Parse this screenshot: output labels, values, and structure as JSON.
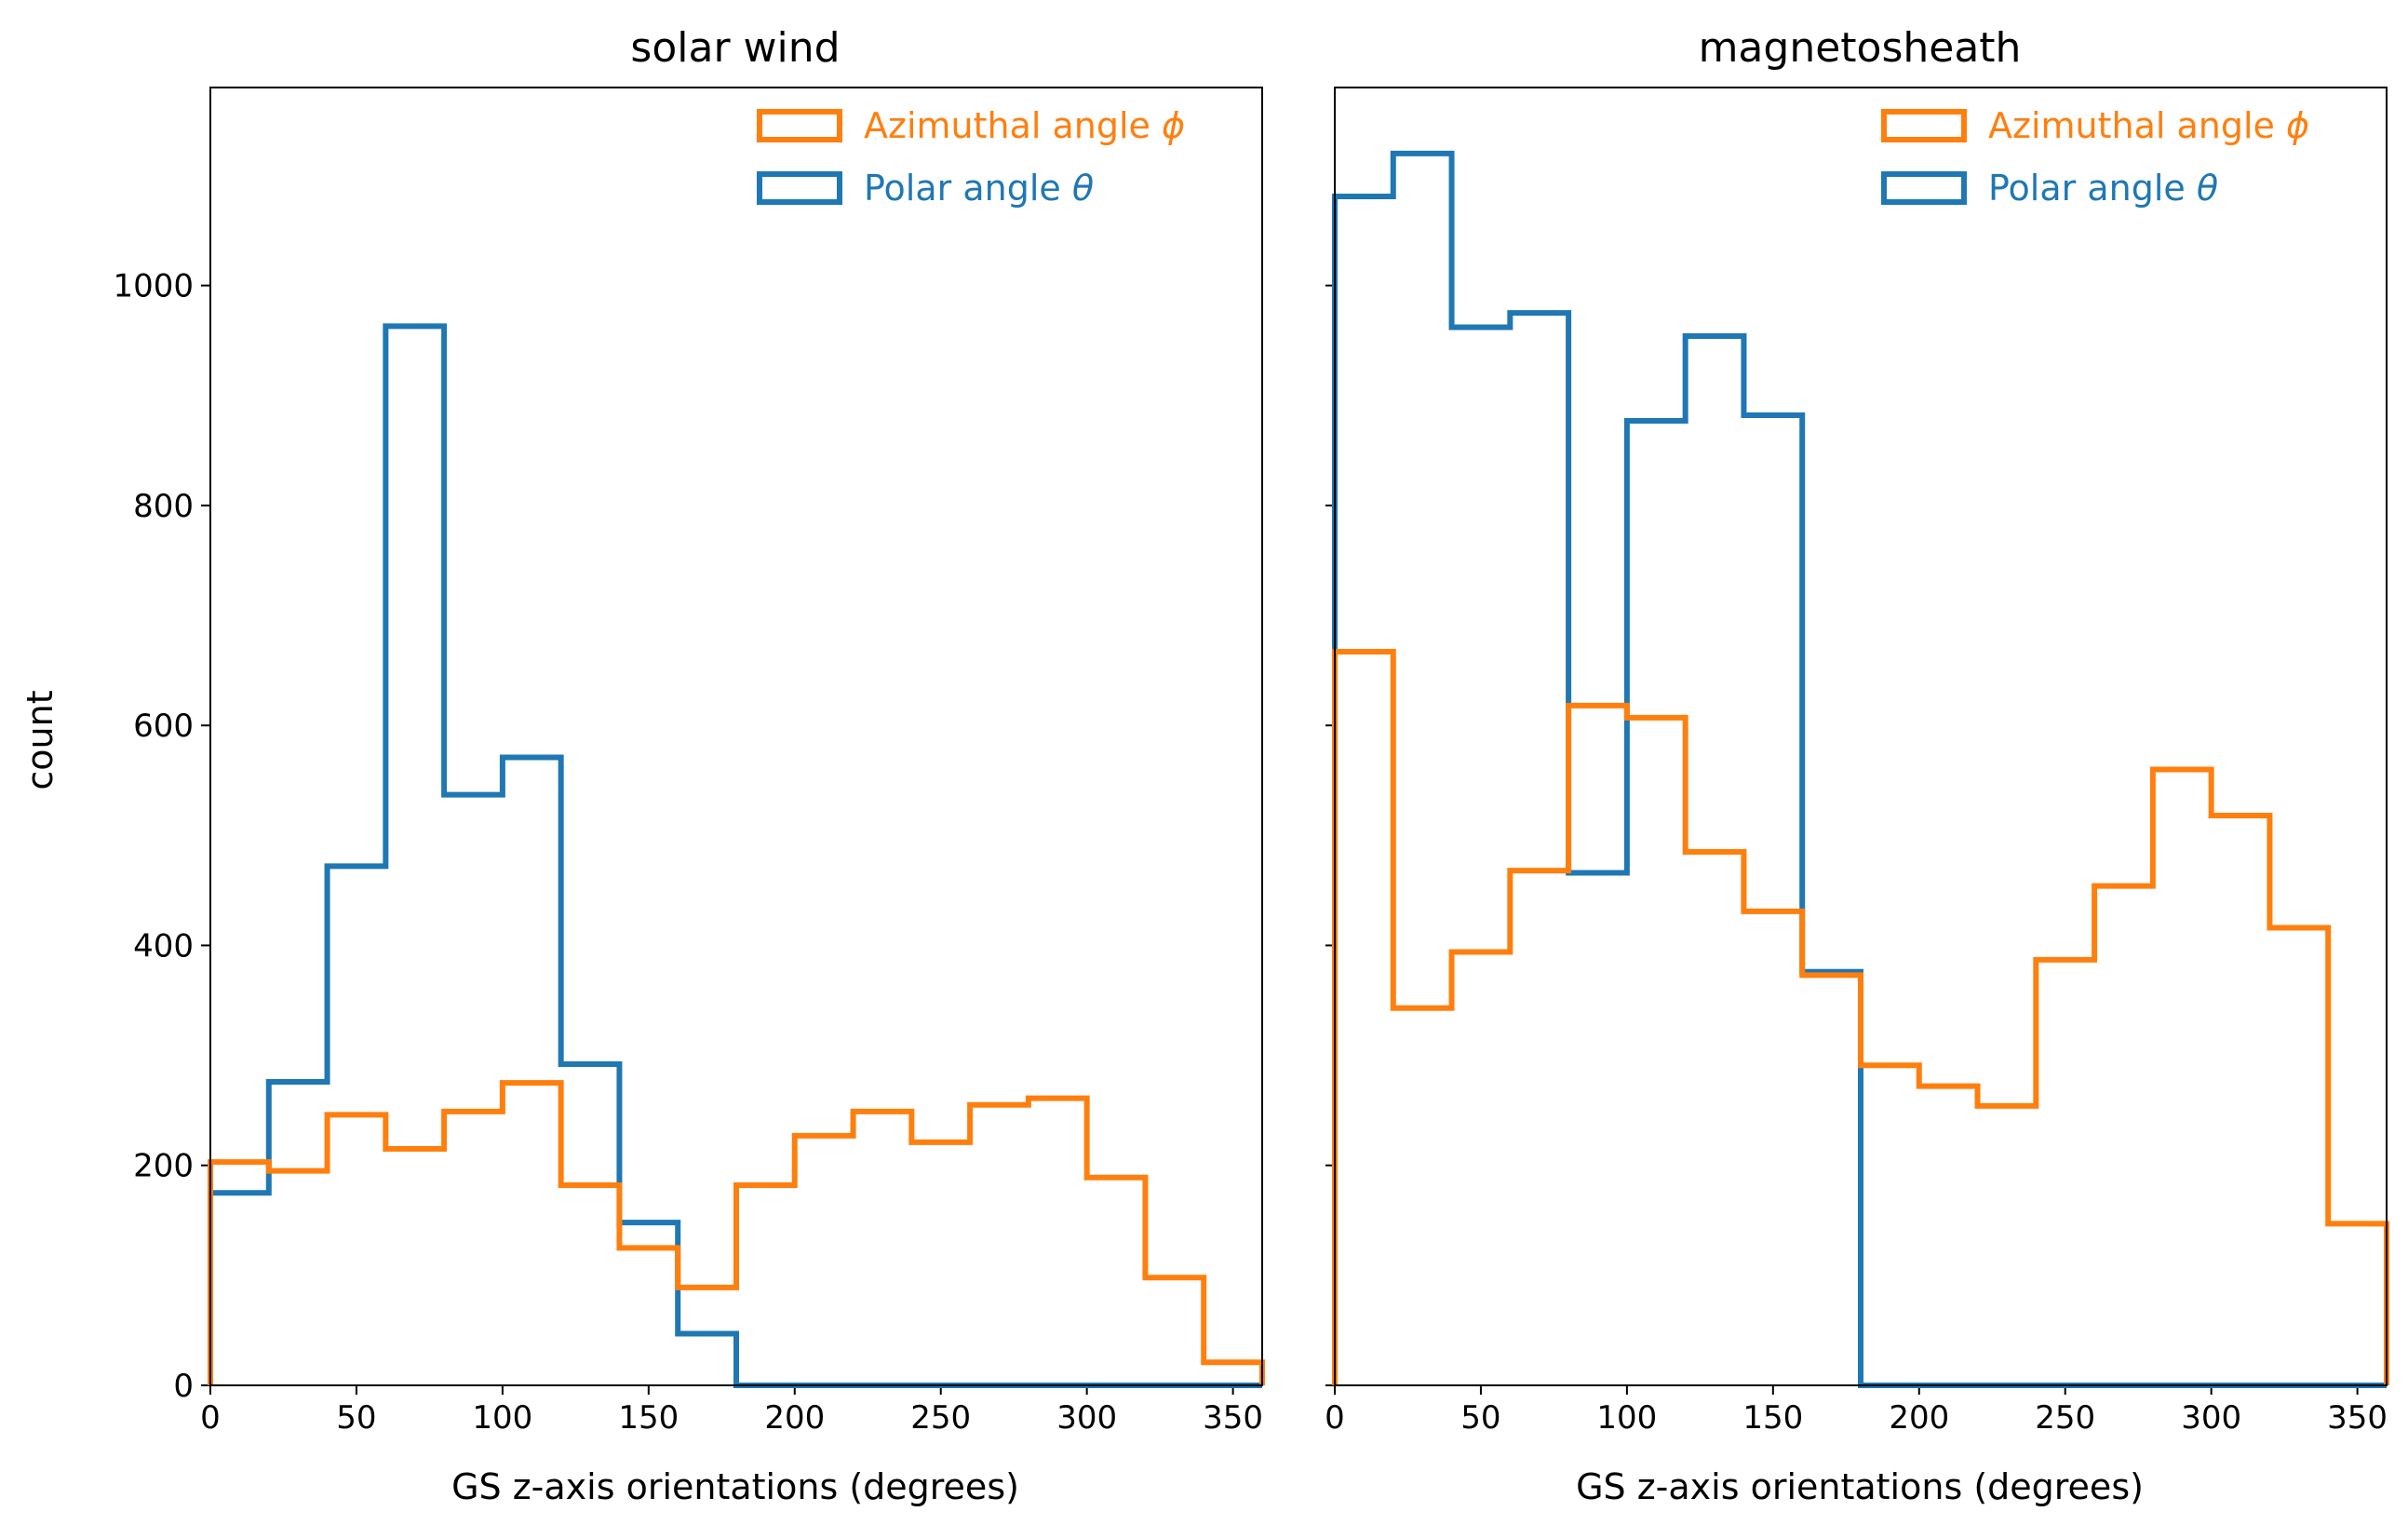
{
  "figure": {
    "ylabel": "count"
  },
  "colors": {
    "azimuthal": "#ff7f0e",
    "polar": "#1f77b4"
  },
  "chart_data": [
    {
      "type": "histogram-step",
      "title": "solar wind",
      "xlabel": "GS z-axis orientations (degrees)",
      "ylabel": "count",
      "xlim": [
        0,
        360
      ],
      "ylim": [
        0,
        1180
      ],
      "xticks": [
        0,
        50,
        100,
        150,
        200,
        250,
        300,
        350
      ],
      "yticks": [
        0,
        200,
        400,
        600,
        800,
        1000
      ],
      "bin_edges": [
        0,
        20,
        40,
        60,
        80,
        100,
        120,
        140,
        160,
        180,
        200,
        220,
        240,
        260,
        280,
        300,
        320,
        340,
        360
      ],
      "legend_position": "top-right",
      "series": [
        {
          "name": "Azimuthal angle",
          "symbol": "ϕ",
          "color": "#ff7f0e",
          "values": [
            203,
            195,
            246,
            215,
            249,
            275,
            182,
            125,
            89,
            182,
            227,
            249,
            221,
            255,
            261,
            189,
            98,
            21
          ]
        },
        {
          "name": "Polar angle",
          "symbol": "θ",
          "color": "#1f77b4",
          "values": [
            175,
            276,
            472,
            963,
            537,
            571,
            292,
            148,
            47,
            0,
            0,
            0,
            0,
            0,
            0,
            0,
            0,
            0
          ]
        }
      ]
    },
    {
      "type": "histogram-step",
      "title": "magnetosheath",
      "xlabel": "GS z-axis orientations (degrees)",
      "ylabel": "",
      "xlim": [
        0,
        360
      ],
      "ylim": [
        0,
        1180
      ],
      "xticks": [
        0,
        50,
        100,
        150,
        200,
        250,
        300,
        350
      ],
      "yticks": [
        0,
        200,
        400,
        600,
        800,
        1000
      ],
      "bin_edges": [
        0,
        20,
        40,
        60,
        80,
        100,
        120,
        140,
        160,
        180,
        200,
        220,
        240,
        260,
        280,
        300,
        320,
        340,
        360
      ],
      "legend_position": "top-right",
      "series": [
        {
          "name": "Azimuthal angle",
          "symbol": "ϕ",
          "color": "#ff7f0e",
          "values": [
            667,
            343,
            394,
            468,
            618,
            607,
            485,
            431,
            373,
            291,
            272,
            254,
            387,
            454,
            560,
            518,
            416,
            147
          ]
        },
        {
          "name": "Polar angle",
          "symbol": "θ",
          "color": "#1f77b4",
          "values": [
            1081,
            1120,
            962,
            975,
            466,
            877,
            954,
            882,
            376,
            0,
            0,
            0,
            0,
            0,
            0,
            0,
            0,
            0
          ]
        }
      ]
    }
  ]
}
